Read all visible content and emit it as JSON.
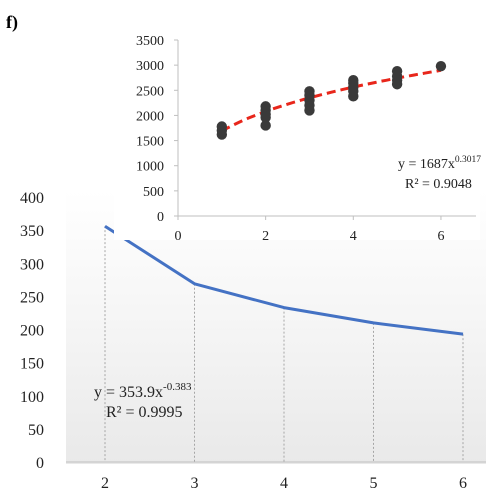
{
  "panel_label": "f)",
  "chart_data": [
    {
      "type": "line",
      "x": [
        2,
        3,
        4,
        5,
        6
      ],
      "series": [
        {
          "values": [
            356,
            269,
            233,
            210,
            193
          ],
          "color": "#4472C4"
        }
      ],
      "xticks": [
        "2",
        "3",
        "4",
        "5",
        "6"
      ],
      "yticks": [
        "0",
        "50",
        "100",
        "150",
        "200",
        "250",
        "300",
        "350",
        "400"
      ],
      "ylim": [
        0,
        400
      ],
      "drop_lines": true,
      "equation": {
        "prefix": "y = 353.9x",
        "exponent": "-0.383"
      },
      "r2": "R² = 0.9995"
    },
    {
      "type": "scatter",
      "points": [
        [
          1,
          1620
        ],
        [
          1,
          1700
        ],
        [
          1,
          1780
        ],
        [
          2,
          1800
        ],
        [
          2,
          1960
        ],
        [
          2,
          2020
        ],
        [
          2,
          2100
        ],
        [
          2,
          2180
        ],
        [
          3,
          2100
        ],
        [
          3,
          2200
        ],
        [
          3,
          2300
        ],
        [
          3,
          2400
        ],
        [
          3,
          2480
        ],
        [
          4,
          2380
        ],
        [
          4,
          2480
        ],
        [
          4,
          2560
        ],
        [
          4,
          2640
        ],
        [
          4,
          2700
        ],
        [
          5,
          2620
        ],
        [
          5,
          2700
        ],
        [
          5,
          2780
        ],
        [
          5,
          2880
        ],
        [
          6,
          2980
        ]
      ],
      "xticks": [
        "0",
        "2",
        "4",
        "6"
      ],
      "xlim": [
        0,
        6.8
      ],
      "yticks": [
        "0",
        "500",
        "1000",
        "1500",
        "2000",
        "2500",
        "3000",
        "3500"
      ],
      "ylim": [
        0,
        3500
      ],
      "point_color": "#3a3a3a",
      "trendline": {
        "a": 1687,
        "b": 0.3017,
        "x_from": 1,
        "x_to": 6,
        "color": "#e8261b",
        "dashed": true
      },
      "equation": {
        "prefix": "y = 1687x",
        "exponent": "0.3017"
      },
      "r2": "R² = 0.9048"
    }
  ]
}
